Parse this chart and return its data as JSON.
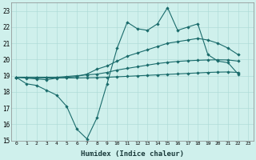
{
  "xlabel": "Humidex (Indice chaleur)",
  "background_color": "#cff0ec",
  "grid_color": "#b0dcd8",
  "line_color": "#1a6b6b",
  "ylim": [
    15,
    23.5
  ],
  "xlim": [
    -0.5,
    23.5
  ],
  "yticks": [
    15,
    16,
    17,
    18,
    19,
    20,
    21,
    22,
    23
  ],
  "xticks": [
    0,
    1,
    2,
    3,
    4,
    5,
    6,
    7,
    8,
    9,
    10,
    11,
    12,
    13,
    14,
    15,
    16,
    17,
    18,
    19,
    20,
    21,
    22,
    23
  ],
  "line1_y": [
    18.9,
    18.5,
    18.4,
    18.1,
    17.8,
    17.1,
    15.7,
    15.1,
    16.4,
    18.5,
    20.7,
    22.3,
    21.9,
    21.8,
    22.2,
    23.2,
    21.8,
    22.0,
    22.2,
    20.3,
    19.9,
    19.8,
    19.1
  ],
  "line2_y": [
    18.9,
    18.85,
    18.8,
    18.75,
    18.85,
    18.9,
    18.95,
    19.1,
    19.4,
    19.6,
    19.9,
    20.2,
    20.4,
    20.6,
    20.8,
    21.0,
    21.1,
    21.2,
    21.3,
    21.2,
    21.0,
    20.7,
    20.3
  ],
  "line3_y": [
    18.9,
    18.9,
    18.9,
    18.9,
    18.9,
    18.95,
    19.0,
    19.05,
    19.1,
    19.2,
    19.35,
    19.45,
    19.55,
    19.65,
    19.75,
    19.82,
    19.88,
    19.92,
    19.95,
    19.97,
    19.98,
    19.97,
    19.9
  ],
  "line4_y": [
    18.9,
    18.88,
    18.87,
    18.86,
    18.86,
    18.86,
    18.86,
    18.87,
    18.88,
    18.9,
    18.93,
    18.96,
    18.99,
    19.02,
    19.05,
    19.08,
    19.11,
    19.14,
    19.17,
    19.2,
    19.22,
    19.23,
    19.2
  ]
}
